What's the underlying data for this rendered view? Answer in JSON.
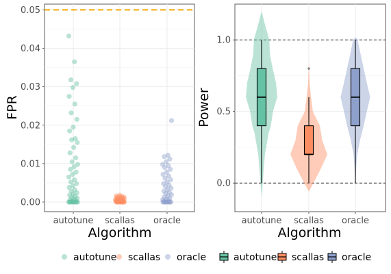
{
  "colors": {
    "autotune": "#66c2a5",
    "scallas": "#fc8d62",
    "oracle": "#8da0cb",
    "threshold": "#f2a900"
  },
  "chart_data": [
    {
      "type": "scatter",
      "xlabel": "Algorithm",
      "ylabel": "FPR",
      "categories": [
        "autotune",
        "scallas",
        "oracle"
      ],
      "y_ticks": [
        "0.00",
        "0.01",
        "0.02",
        "0.03",
        "0.04",
        "0.05"
      ],
      "ylim": [
        -0.0025,
        0.0515
      ],
      "reference_line": 0.05,
      "grid": true,
      "series": [
        {
          "name": "autotune",
          "values": [
            0.0432,
            0.0365,
            0.0318,
            0.0308,
            0.0298,
            0.0275,
            0.0255,
            0.0232,
            0.0215,
            0.0195,
            0.0185,
            0.0165,
            0.0162,
            0.0155,
            0.0142,
            0.0128,
            0.0115,
            0.0105,
            0.0098,
            0.0092,
            0.0085,
            0.0078,
            0.0072,
            0.0065,
            0.0058,
            0.0052,
            0.0048,
            0.0042,
            0.0038,
            0.0032,
            0.0028,
            0.0024,
            0.0021,
            0.0018,
            0.0015,
            0.0012,
            0.001,
            0.0008,
            0.0006,
            0.0004,
            0.0002,
            0.0,
            0.0,
            0.0,
            0.0,
            0.0,
            0.0,
            0.0,
            0.0,
            0.0,
            0.0,
            0.0
          ]
        },
        {
          "name": "scallas",
          "values": [
            0.0018,
            0.0016,
            0.0015,
            0.0014,
            0.0013,
            0.0012,
            0.0011,
            0.001,
            0.001,
            0.0009,
            0.0008,
            0.0008,
            0.0007,
            0.0006,
            0.0006,
            0.0005,
            0.0005,
            0.0004,
            0.0004,
            0.0003,
            0.0003,
            0.0002,
            0.0002,
            0.0001,
            0.0001,
            0.0,
            0.0,
            0.0,
            0.0,
            0.0,
            0.0,
            0.0,
            0.0,
            0.0,
            0.0,
            0.0
          ]
        },
        {
          "name": "oracle",
          "values": [
            0.0212,
            0.0122,
            0.0118,
            0.0112,
            0.0105,
            0.0098,
            0.0095,
            0.009,
            0.0085,
            0.0078,
            0.0072,
            0.0068,
            0.0062,
            0.0058,
            0.0052,
            0.0048,
            0.0044,
            0.004,
            0.0036,
            0.0032,
            0.0028,
            0.0025,
            0.0022,
            0.0019,
            0.0016,
            0.0013,
            0.001,
            0.0008,
            0.0006,
            0.0004,
            0.0002,
            0.0,
            0.0,
            0.0,
            0.0,
            0.0,
            0.0,
            0.0,
            0.0,
            0.0,
            0.0
          ]
        }
      ]
    },
    {
      "type": "violin",
      "xlabel": "Algorithm",
      "ylabel": "Power",
      "categories": [
        "autotune",
        "scallas",
        "oracle"
      ],
      "y_ticks": [
        "0.0",
        "0.5",
        "1.0"
      ],
      "ylim": [
        -0.2,
        1.25
      ],
      "reference_lines": [
        0.0,
        1.0
      ],
      "grid": true,
      "series": [
        {
          "name": "autotune",
          "range": [
            -0.1,
            1.2
          ],
          "box": {
            "min": 0.0,
            "q1": 0.4,
            "median": 0.6,
            "q3": 0.8,
            "max": 1.0
          },
          "outliers": [],
          "density": [
            [
              -0.1,
              0.0
            ],
            [
              0.0,
              0.06
            ],
            [
              0.2,
              0.18
            ],
            [
              0.35,
              0.38
            ],
            [
              0.4,
              0.5
            ],
            [
              0.5,
              0.62
            ],
            [
              0.6,
              0.85
            ],
            [
              0.7,
              0.78
            ],
            [
              0.8,
              0.6
            ],
            [
              0.9,
              0.45
            ],
            [
              1.0,
              0.42
            ],
            [
              1.1,
              0.2
            ],
            [
              1.2,
              0.0
            ]
          ]
        },
        {
          "name": "scallas",
          "range": [
            -0.06,
            0.85
          ],
          "box": {
            "min": 0.0,
            "q1": 0.2,
            "median": 0.2,
            "q3": 0.4,
            "max": 0.6
          },
          "outliers": [
            0.8
          ],
          "density": [
            [
              -0.06,
              0.0
            ],
            [
              0.0,
              0.25
            ],
            [
              0.1,
              0.65
            ],
            [
              0.2,
              1.0
            ],
            [
              0.3,
              0.72
            ],
            [
              0.4,
              0.6
            ],
            [
              0.5,
              0.22
            ],
            [
              0.6,
              0.12
            ],
            [
              0.7,
              0.04
            ],
            [
              0.85,
              0.0
            ]
          ]
        },
        {
          "name": "oracle",
          "range": [
            0.0,
            1.02
          ],
          "box": {
            "min": 0.0,
            "q1": 0.4,
            "median": 0.6,
            "q3": 0.8,
            "max": 1.0
          },
          "outliers": [],
          "density": [
            [
              0.0,
              0.0
            ],
            [
              0.1,
              0.04
            ],
            [
              0.2,
              0.1
            ],
            [
              0.3,
              0.25
            ],
            [
              0.4,
              0.45
            ],
            [
              0.5,
              0.62
            ],
            [
              0.6,
              0.8
            ],
            [
              0.7,
              0.62
            ],
            [
              0.8,
              0.45
            ],
            [
              0.9,
              0.28
            ],
            [
              1.0,
              0.12
            ],
            [
              1.02,
              0.0
            ]
          ]
        }
      ]
    }
  ],
  "legend": {
    "position": "bottom",
    "points": [
      {
        "key": "autotune",
        "label": "autotune"
      },
      {
        "key": "scallas",
        "label": "scallas"
      },
      {
        "key": "oracle",
        "label": "oracle"
      }
    ],
    "boxes": [
      {
        "key": "autotune",
        "label": "autotune"
      },
      {
        "key": "scallas",
        "label": "scallas"
      },
      {
        "key": "oracle",
        "label": "oracle"
      }
    ]
  }
}
